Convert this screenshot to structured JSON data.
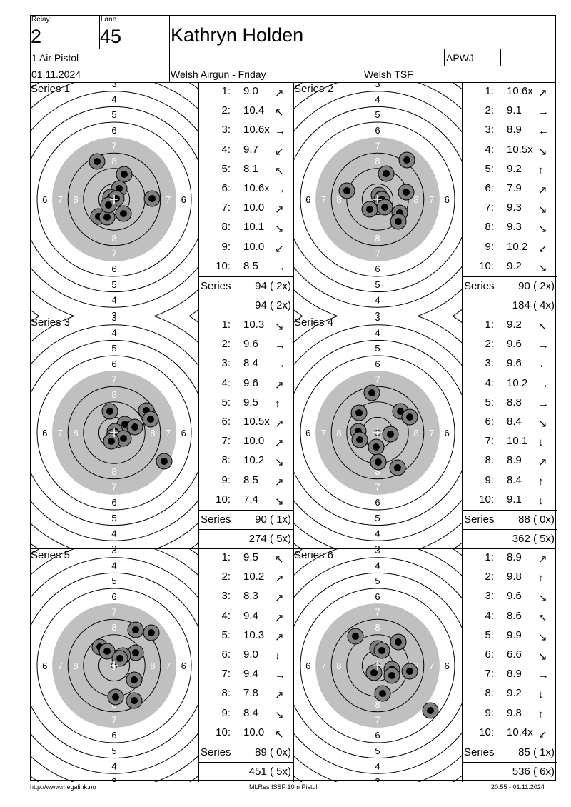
{
  "header": {
    "relay_label": "Relay",
    "relay": "2",
    "lane_label": "Lane",
    "lane": "45",
    "name": "Kathryn Holden",
    "class": "1 Air Pistol",
    "club": "APWJ",
    "date": "01.11.2024",
    "event": "Welsh Airgun - Friday",
    "organizer": "Welsh TSF"
  },
  "ring_labels": [
    "3",
    "4",
    "5",
    "6",
    "7",
    "8"
  ],
  "series": [
    {
      "title": "Series 1",
      "total_label": "Series",
      "total": "94 ( 2x)",
      "running": "94 ( 2x)",
      "shots": [
        {
          "n": "1:",
          "v": "9.0",
          "d": "ne"
        },
        {
          "n": "2:",
          "v": "10.4",
          "d": "nw"
        },
        {
          "n": "3:",
          "v": "10.6x",
          "d": "e"
        },
        {
          "n": "4:",
          "v": "9.7",
          "d": "sw"
        },
        {
          "n": "5:",
          "v": "8.1",
          "d": "nw"
        },
        {
          "n": "6:",
          "v": "10.6x",
          "d": "e"
        },
        {
          "n": "7:",
          "v": "10.0",
          "d": "ne"
        },
        {
          "n": "8:",
          "v": "10.1",
          "d": "se"
        },
        {
          "n": "9:",
          "v": "10.0",
          "d": "sw"
        },
        {
          "n": "10:",
          "v": "8.5",
          "d": "e"
        }
      ],
      "hits": [
        [
          -24,
          53
        ],
        [
          14,
          35
        ],
        [
          7,
          15
        ],
        [
          -5,
          3
        ],
        [
          3,
          1
        ],
        [
          53,
          1
        ],
        [
          -22,
          -24
        ],
        [
          -10,
          -25
        ],
        [
          13,
          -20
        ],
        [
          -8,
          -8
        ]
      ]
    },
    {
      "title": "Series 2",
      "total_label": "Series",
      "total": "90 ( 2x)",
      "running": "184 ( 4x)",
      "shots": [
        {
          "n": "1:",
          "v": "10.6x",
          "d": "ne"
        },
        {
          "n": "2:",
          "v": "9.1",
          "d": "e"
        },
        {
          "n": "3:",
          "v": "8.9",
          "d": "w"
        },
        {
          "n": "4:",
          "v": "10.5x",
          "d": "se"
        },
        {
          "n": "5:",
          "v": "9.2",
          "d": "n"
        },
        {
          "n": "6:",
          "v": "7.9",
          "d": "ne"
        },
        {
          "n": "7:",
          "v": "9.3",
          "d": "se"
        },
        {
          "n": "8:",
          "v": "9.3",
          "d": "se"
        },
        {
          "n": "9:",
          "v": "10.2",
          "d": "sw"
        },
        {
          "n": "10:",
          "v": "9.2",
          "d": "se"
        }
      ],
      "hits": [
        [
          41,
          55
        ],
        [
          12,
          36
        ],
        [
          -43,
          12
        ],
        [
          40,
          10
        ],
        [
          2,
          6
        ],
        [
          6,
          0
        ],
        [
          -11,
          -14
        ],
        [
          10,
          -11
        ],
        [
          31,
          -19
        ],
        [
          29,
          -31
        ]
      ]
    },
    {
      "title": "Series 3",
      "total_label": "Series",
      "total": "90 ( 1x)",
      "running": "274 ( 5x)",
      "shots": [
        {
          "n": "1:",
          "v": "10.3",
          "d": "se"
        },
        {
          "n": "2:",
          "v": "9.6",
          "d": "e"
        },
        {
          "n": "3:",
          "v": "8.4",
          "d": "e"
        },
        {
          "n": "4:",
          "v": "9.6",
          "d": "ne"
        },
        {
          "n": "5:",
          "v": "9.5",
          "d": "n"
        },
        {
          "n": "6:",
          "v": "10.5x",
          "d": "ne"
        },
        {
          "n": "7:",
          "v": "10.0",
          "d": "ne"
        },
        {
          "n": "8:",
          "v": "10.2",
          "d": "se"
        },
        {
          "n": "9:",
          "v": "8.5",
          "d": "ne"
        },
        {
          "n": "10:",
          "v": "7.4",
          "d": "se"
        }
      ],
      "hits": [
        [
          -6,
          30
        ],
        [
          45,
          31
        ],
        [
          51,
          19
        ],
        [
          15,
          12
        ],
        [
          29,
          8
        ],
        [
          1,
          2
        ],
        [
          -1,
          -6
        ],
        [
          13,
          -8
        ],
        [
          70,
          -40
        ],
        [
          -4,
          -12
        ]
      ]
    },
    {
      "title": "Series 4",
      "total_label": "Series",
      "total": "88 ( 0x)",
      "running": "362 ( 5x)",
      "shots": [
        {
          "n": "1:",
          "v": "9.2",
          "d": "nw"
        },
        {
          "n": "2:",
          "v": "9.6",
          "d": "e"
        },
        {
          "n": "3:",
          "v": "9.6",
          "d": "w"
        },
        {
          "n": "4:",
          "v": "10.2",
          "d": "e"
        },
        {
          "n": "5:",
          "v": "8.8",
          "d": "e"
        },
        {
          "n": "6:",
          "v": "8.4",
          "d": "se"
        },
        {
          "n": "7:",
          "v": "10.1",
          "d": "s"
        },
        {
          "n": "8:",
          "v": "8.9",
          "d": "ne"
        },
        {
          "n": "9:",
          "v": "8.4",
          "d": "n"
        },
        {
          "n": "10:",
          "v": "9.1",
          "d": "s"
        }
      ],
      "hits": [
        [
          -8,
          56
        ],
        [
          -26,
          28
        ],
        [
          32,
          30
        ],
        [
          45,
          22
        ],
        [
          -27,
          2
        ],
        [
          18,
          -2
        ],
        [
          -25,
          -10
        ],
        [
          -2,
          -20
        ],
        [
          1,
          -41
        ],
        [
          28,
          -49
        ]
      ]
    },
    {
      "title": "Series 5",
      "total_label": "Series",
      "total": "89 ( 0x)",
      "running": "451 ( 5x)",
      "shots": [
        {
          "n": "1:",
          "v": "9.5",
          "d": "nw"
        },
        {
          "n": "2:",
          "v": "10.2",
          "d": "ne"
        },
        {
          "n": "3:",
          "v": "8.3",
          "d": "ne"
        },
        {
          "n": "4:",
          "v": "9.4",
          "d": "ne"
        },
        {
          "n": "5:",
          "v": "10.3",
          "d": "ne"
        },
        {
          "n": "6:",
          "v": "9.0",
          "d": "s"
        },
        {
          "n": "7:",
          "v": "9.4",
          "d": "e"
        },
        {
          "n": "8:",
          "v": "7.8",
          "d": "ne"
        },
        {
          "n": "9:",
          "v": "8.4",
          "d": "se"
        },
        {
          "n": "10:",
          "v": "10.0",
          "d": "nw"
        }
      ],
      "hits": [
        [
          30,
          50
        ],
        [
          52,
          46
        ],
        [
          -20,
          26
        ],
        [
          -10,
          20
        ],
        [
          30,
          18
        ],
        [
          12,
          14
        ],
        [
          28,
          -20
        ],
        [
          2,
          -44
        ],
        [
          28,
          -49
        ],
        [
          8,
          10
        ]
      ]
    },
    {
      "title": "Series 6",
      "total_label": "Series",
      "total": "85 ( 1x)",
      "running": "536 ( 6x)",
      "shots": [
        {
          "n": "1:",
          "v": "8.9",
          "d": "ne"
        },
        {
          "n": "2:",
          "v": "9.8",
          "d": "n"
        },
        {
          "n": "3:",
          "v": "9.6",
          "d": "se"
        },
        {
          "n": "4:",
          "v": "8.6",
          "d": "nw"
        },
        {
          "n": "5:",
          "v": "9.9",
          "d": "se"
        },
        {
          "n": "6:",
          "v": "6.6",
          "d": "se"
        },
        {
          "n": "7:",
          "v": "8.9",
          "d": "e"
        },
        {
          "n": "8:",
          "v": "9.2",
          "d": "s"
        },
        {
          "n": "9:",
          "v": "9.8",
          "d": "n"
        },
        {
          "n": "10:",
          "v": "10.4x",
          "d": "sw"
        }
      ],
      "hits": [
        [
          -31,
          41
        ],
        [
          29,
          33
        ],
        [
          0,
          24
        ],
        [
          6,
          21
        ],
        [
          -5,
          -10
        ],
        [
          20,
          -5
        ],
        [
          45,
          -8
        ],
        [
          20,
          -14
        ],
        [
          7,
          -39
        ],
        [
          74,
          -63
        ]
      ]
    }
  ],
  "footer": {
    "left": "http://www.megalink.no",
    "center": "MLRes ISSF 10m Pistol",
    "right": "20:55 - 01.11.2024"
  }
}
